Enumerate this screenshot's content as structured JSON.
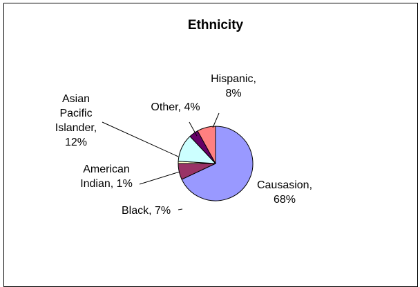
{
  "chart_data": {
    "type": "pie",
    "title": "Ethnicity",
    "slices": [
      {
        "name": "Causasion",
        "value": 68,
        "color": "#9999ff",
        "label_lines": [
          "Causasion,",
          "68%"
        ]
      },
      {
        "name": "Black",
        "value": 7,
        "color": "#993366",
        "label_lines": [
          "Black, 7%"
        ]
      },
      {
        "name": "American Indian",
        "value": 1,
        "color": "#ffffcc",
        "label_lines": [
          "American",
          "Indian, 1%"
        ]
      },
      {
        "name": "Asian Pacific Islander",
        "value": 12,
        "color": "#ccffff",
        "label_lines": [
          "Asian",
          "Pacific",
          "Islander,",
          "12%"
        ]
      },
      {
        "name": "Other",
        "value": 4,
        "color": "#660066",
        "label_lines": [
          "Other, 4%"
        ]
      },
      {
        "name": "Hispanic",
        "value": 8,
        "color": "#ff8080",
        "label_lines": [
          "Hispanic,",
          "8%"
        ]
      }
    ],
    "legend": "none"
  }
}
